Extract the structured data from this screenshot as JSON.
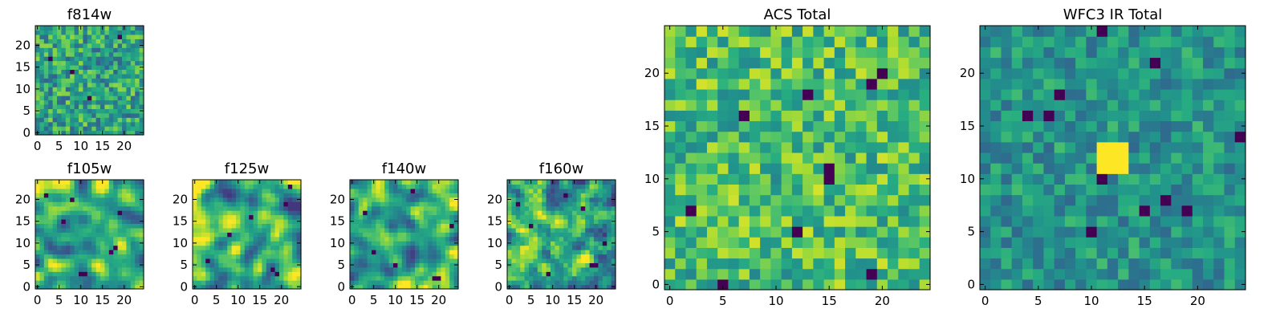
{
  "chart_data": [
    {
      "type": "heatmap",
      "title": "f814w",
      "xlabel": "",
      "ylabel": "",
      "xlim": [
        -0.5,
        24.5
      ],
      "ylim": [
        -0.5,
        24.5
      ],
      "x_ticks": [
        0,
        5,
        10,
        15,
        20
      ],
      "y_ticks": [
        0,
        5,
        10,
        15,
        20
      ],
      "grid_size": 25,
      "colormap": "viridis",
      "pattern": "fine pixel noise (smoothing 0), no central source",
      "seed": 11,
      "smoothing": 0,
      "bias": 0.58,
      "spread": 0.26,
      "dark_pixels": [
        [
          8,
          14
        ],
        [
          19,
          22
        ],
        [
          12,
          8
        ],
        [
          3,
          17
        ]
      ]
    },
    {
      "type": "heatmap",
      "title": "f105w",
      "xlabel": "",
      "ylabel": "",
      "xlim": [
        -0.5,
        24.5
      ],
      "ylim": [
        -0.5,
        24.5
      ],
      "x_ticks": [
        0,
        5,
        10,
        15,
        20
      ],
      "y_ticks": [
        0,
        5,
        10,
        15,
        20
      ],
      "grid_size": 25,
      "colormap": "viridis",
      "pattern": "smooth correlated noise, scattered dark spots",
      "seed": 23,
      "smoothing": 2,
      "bias": 0.72,
      "spread": 0.5,
      "dark_pixels": [
        [
          17,
          8
        ],
        [
          18,
          9
        ],
        [
          10,
          3
        ],
        [
          11,
          3
        ],
        [
          6,
          15
        ],
        [
          19,
          17
        ],
        [
          2,
          21
        ],
        [
          8,
          20
        ]
      ]
    },
    {
      "type": "heatmap",
      "title": "f125w",
      "xlabel": "",
      "ylabel": "",
      "xlim": [
        -0.5,
        24.5
      ],
      "ylim": [
        -0.5,
        24.5
      ],
      "x_ticks": [
        0,
        5,
        10,
        15,
        20
      ],
      "y_ticks": [
        0,
        5,
        10,
        15,
        20
      ],
      "grid_size": 25,
      "colormap": "viridis",
      "pattern": "smooth correlated noise, scattered dark spots",
      "seed": 37,
      "smoothing": 2,
      "bias": 0.66,
      "spread": 0.55,
      "dark_pixels": [
        [
          21,
          19
        ],
        [
          19,
          3
        ],
        [
          18,
          4
        ],
        [
          22,
          23
        ],
        [
          8,
          12
        ],
        [
          13,
          16
        ],
        [
          3,
          6
        ]
      ]
    },
    {
      "type": "heatmap",
      "title": "f140w",
      "xlabel": "",
      "ylabel": "",
      "xlim": [
        -0.5,
        24.5
      ],
      "ylim": [
        -0.5,
        24.5
      ],
      "x_ticks": [
        0,
        5,
        10,
        15,
        20
      ],
      "y_ticks": [
        0,
        5,
        10,
        15,
        20
      ],
      "grid_size": 25,
      "colormap": "viridis",
      "pattern": "smooth correlated noise, scattered dark spots",
      "seed": 41,
      "smoothing": 2,
      "bias": 0.7,
      "spread": 0.5,
      "dark_pixels": [
        [
          10,
          5
        ],
        [
          19,
          2
        ],
        [
          20,
          2
        ],
        [
          14,
          22
        ],
        [
          5,
          8
        ],
        [
          23,
          14
        ],
        [
          3,
          17
        ]
      ]
    },
    {
      "type": "heatmap",
      "title": "f160w",
      "xlabel": "",
      "ylabel": "",
      "xlim": [
        -0.5,
        24.5
      ],
      "ylim": [
        -0.5,
        24.5
      ],
      "x_ticks": [
        0,
        5,
        10,
        15,
        20
      ],
      "y_ticks": [
        0,
        5,
        10,
        15,
        20
      ],
      "grid_size": 25,
      "colormap": "viridis",
      "pattern": "smooth correlated noise, scattered dark spots",
      "seed": 53,
      "smoothing": 1,
      "bias": 0.6,
      "spread": 0.5,
      "dark_pixels": [
        [
          19,
          5
        ],
        [
          20,
          5
        ],
        [
          9,
          3
        ],
        [
          17,
          18
        ],
        [
          5,
          14
        ],
        [
          22,
          10
        ],
        [
          13,
          21
        ],
        [
          2,
          19
        ]
      ]
    },
    {
      "type": "heatmap",
      "title": "ACS Total",
      "xlabel": "",
      "ylabel": "",
      "xlim": [
        -0.5,
        24.5
      ],
      "ylim": [
        -0.5,
        24.5
      ],
      "x_ticks": [
        0,
        5,
        10,
        15,
        20
      ],
      "y_ticks": [
        0,
        5,
        10,
        15,
        20
      ],
      "grid_size": 25,
      "colormap": "viridis",
      "pattern": "pixel noise, bright yellow patches, a few isolated dark pixels",
      "seed": 67,
      "smoothing": 0,
      "bias": 0.7,
      "spread": 0.24,
      "dark_pixels": [
        [
          15,
          10
        ],
        [
          15,
          11
        ],
        [
          13,
          18
        ],
        [
          19,
          19
        ],
        [
          20,
          20
        ],
        [
          7,
          16
        ],
        [
          2,
          7
        ],
        [
          12,
          5
        ],
        [
          19,
          1
        ],
        [
          5,
          0
        ]
      ]
    },
    {
      "type": "heatmap",
      "title": "WFC3 IR Total",
      "xlabel": "",
      "ylabel": "",
      "xlim": [
        -0.5,
        24.5
      ],
      "ylim": [
        -0.5,
        24.5
      ],
      "x_ticks": [
        0,
        5,
        10,
        15,
        20
      ],
      "y_ticks": [
        0,
        5,
        10,
        15,
        20
      ],
      "grid_size": 25,
      "colormap": "viridis",
      "pattern": "teal pixel noise with bright yellow 3x3 source near (11-13, 11-13)",
      "seed": 79,
      "smoothing": 0,
      "bias": 0.52,
      "spread": 0.18,
      "bright_block": {
        "x": [
          11,
          13
        ],
        "y": [
          11,
          13
        ],
        "value": 1.0
      },
      "dark_pixels": [
        [
          11,
          10
        ],
        [
          7,
          18
        ],
        [
          11,
          24
        ],
        [
          16,
          21
        ],
        [
          4,
          16
        ],
        [
          6,
          16
        ],
        [
          10,
          5
        ],
        [
          15,
          7
        ],
        [
          19,
          7
        ],
        [
          17,
          8
        ],
        [
          24,
          14
        ]
      ]
    }
  ]
}
